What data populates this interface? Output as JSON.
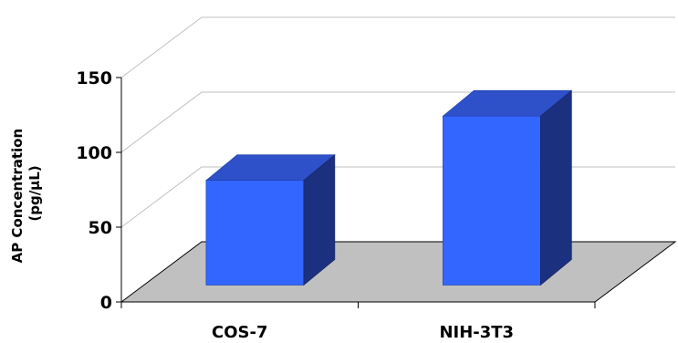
{
  "chart_data": {
    "type": "bar",
    "style": "3d",
    "categories": [
      "COS-7",
      "NIH-3T3"
    ],
    "values": [
      70,
      113
    ],
    "ylabel": [
      "AP Concentration",
      "(pg/µL)"
    ],
    "xlabel": "",
    "ylim": [
      0,
      150
    ],
    "yticks": [
      "0",
      "50",
      "100",
      "150"
    ],
    "grid": true,
    "legend": "none",
    "colors": {
      "bar_front": "#3366FF",
      "bar_top": "#2E50C8",
      "bar_side": "#1C3080",
      "floor": "#C0C0C0",
      "grid": "#BFBFBF",
      "axis": "#000000"
    }
  }
}
